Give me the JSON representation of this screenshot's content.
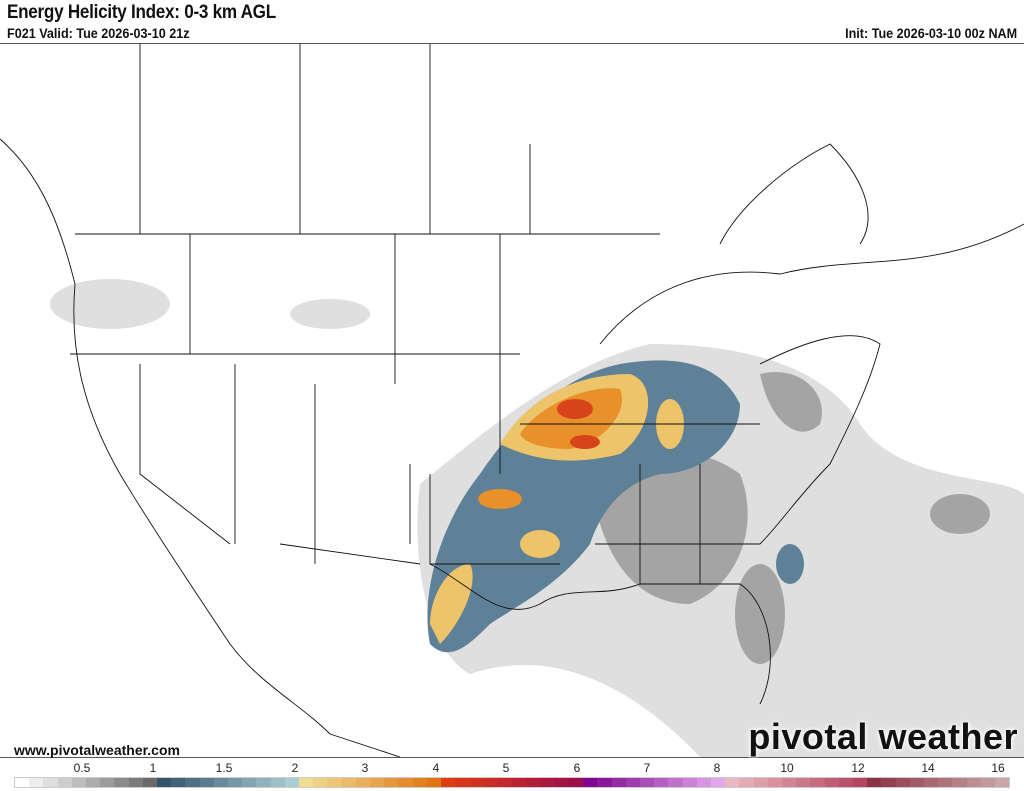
{
  "header": {
    "title": "Energy Helicity Index: 0-3 km AGL",
    "valid": "F021 Valid: Tue 2026-03-10 21z",
    "init": "Init: Tue 2026-03-10 00z NAM"
  },
  "footer": {
    "website": "www.pivotalweather.com",
    "logo": "pivotal weather"
  },
  "colorbar": {
    "labels": [
      "0.5",
      "1",
      "1.5",
      "2",
      "3",
      "4",
      "5",
      "6",
      "7",
      "8",
      "10",
      "12",
      "14",
      "16"
    ],
    "segments": [
      {
        "from": "#ffffff",
        "to": "#6a6a6a"
      },
      {
        "from": "#34546e",
        "to": "#a9cdd3"
      },
      {
        "from": "#f1dc94",
        "to": "#e07512"
      },
      {
        "from": "#de3c12",
        "to": "#9e0e4c"
      },
      {
        "from": "#7e0690",
        "to": "#e2a6ea"
      },
      {
        "from": "#ebb8c0",
        "to": "#b44460"
      },
      {
        "from": "#8c3446",
        "to": "#cba6a8"
      }
    ]
  },
  "map_colors": {
    "gray_light": "#d9d9d9",
    "gray_dark": "#8a8a8a",
    "blue": "#5e8198",
    "yellow": "#edc46a",
    "orange": "#e8902a",
    "red": "#d8441a"
  }
}
